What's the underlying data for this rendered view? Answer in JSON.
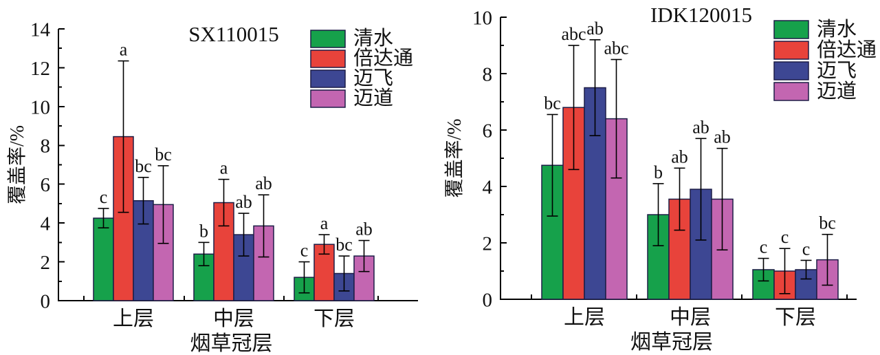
{
  "figure": {
    "background": "#ffffff",
    "bar_outline_color": "#1d1d46",
    "errorbar_color": "#000000",
    "axis_color": "#000000"
  },
  "chart_data": [
    {
      "type": "bar",
      "title": "SX110015",
      "ylabel": "覆盖率/%",
      "xlabel": "烟草冠层",
      "categories": [
        "上层",
        "中层",
        "下层"
      ],
      "ylim": [
        0,
        14
      ],
      "yticks": [
        0,
        2,
        4,
        6,
        8,
        10,
        12,
        14
      ],
      "ytick_step": 2,
      "yminor_step": 1,
      "grid": false,
      "legend_position": "top-right-inside",
      "series": [
        {
          "name": "清水",
          "color": "#16a14b",
          "values": [
            4.25,
            2.4,
            1.2
          ],
          "errors": [
            0.5,
            0.6,
            0.8
          ],
          "letters": [
            "c",
            "b",
            "c"
          ]
        },
        {
          "name": "倍达通",
          "color": "#e8433b",
          "values": [
            8.45,
            5.05,
            2.9
          ],
          "errors": [
            3.9,
            1.2,
            0.5
          ],
          "letters": [
            "a",
            "a",
            "a"
          ]
        },
        {
          "name": "迈飞",
          "color": "#3d4793",
          "values": [
            5.15,
            3.4,
            1.4
          ],
          "errors": [
            1.2,
            1.1,
            0.9
          ],
          "letters": [
            "bc",
            "ab",
            "bc"
          ]
        },
        {
          "name": "迈道",
          "color": "#c366b1",
          "values": [
            4.95,
            3.85,
            2.3
          ],
          "errors": [
            2.0,
            1.6,
            0.8
          ],
          "letters": [
            "bc",
            "ab",
            "ab"
          ]
        }
      ]
    },
    {
      "type": "bar",
      "title": "IDK120015",
      "ylabel": "覆盖率/%",
      "xlabel": "烟草冠层",
      "categories": [
        "上层",
        "中层",
        "下层"
      ],
      "ylim": [
        0,
        10
      ],
      "yticks": [
        0,
        2,
        4,
        6,
        8,
        10
      ],
      "ytick_step": 2,
      "yminor_step": 1,
      "grid": false,
      "legend_position": "top-right-inside",
      "series": [
        {
          "name": "清水",
          "color": "#16a14b",
          "values": [
            4.75,
            3.0,
            1.05
          ],
          "errors": [
            1.8,
            1.1,
            0.4
          ],
          "letters": [
            "bc",
            "b",
            "c"
          ]
        },
        {
          "name": "倍达通",
          "color": "#e8433b",
          "values": [
            6.8,
            3.55,
            1.0
          ],
          "errors": [
            2.2,
            1.1,
            0.8
          ],
          "letters": [
            "abc",
            "ab",
            "c"
          ]
        },
        {
          "name": "迈飞",
          "color": "#3d4793",
          "values": [
            7.5,
            3.9,
            1.05
          ],
          "errors": [
            1.7,
            1.8,
            0.33
          ],
          "letters": [
            "ab",
            "ab",
            "c"
          ]
        },
        {
          "name": "迈道",
          "color": "#c366b1",
          "values": [
            6.4,
            3.55,
            1.4
          ],
          "errors": [
            2.1,
            1.8,
            0.9
          ],
          "letters": [
            "abc",
            "ab",
            "bc"
          ]
        }
      ]
    }
  ]
}
